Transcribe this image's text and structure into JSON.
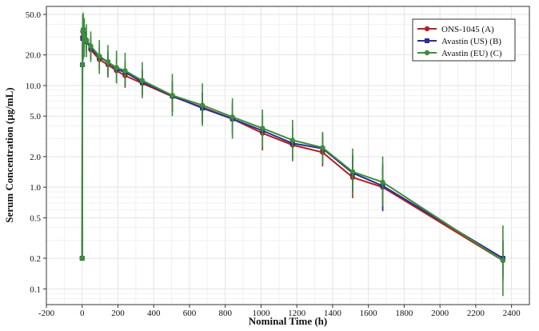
{
  "chart_data": {
    "type": "line",
    "title": "",
    "xlabel": "Nominal Time (h)",
    "ylabel": "Serum Concentration (µg/mL)",
    "x_scale": "linear",
    "y_scale": "log",
    "xlim": [
      -200,
      2500
    ],
    "ylim": [
      0.07,
      60
    ],
    "grid": true,
    "legend_position": "top-right",
    "x_ticks": [
      -200,
      0,
      200,
      400,
      600,
      800,
      1000,
      1200,
      1400,
      1600,
      1800,
      2000,
      2200,
      2400
    ],
    "x_tick_labels": [
      "-200",
      "0",
      "200",
      "400",
      "600",
      "800",
      "1000",
      "1200",
      "1400",
      "1600",
      "1800",
      "2000",
      "2200",
      "2400"
    ],
    "y_ticks": [
      0.1,
      0.2,
      0.5,
      1.0,
      2.0,
      5.0,
      10.0,
      20.0,
      50.0
    ],
    "y_tick_labels": [
      "0.1",
      "0.2",
      "0.5",
      "1.0",
      "2.0",
      "5.0",
      "10.0",
      "20.0",
      "50.0"
    ],
    "series": [
      {
        "name": "ONS-1045 (A)",
        "color": "#b22222",
        "marker": "circle",
        "points": [
          {
            "x": 0,
            "y": 0.2,
            "lo": 0.2,
            "hi": 0.2
          },
          {
            "x": 1.5,
            "y": 16,
            "lo": 16,
            "hi": 16
          },
          {
            "x": 3,
            "y": 30,
            "lo": 25,
            "hi": 36
          },
          {
            "x": 6,
            "y": 33,
            "lo": 27,
            "hi": 40
          },
          {
            "x": 12,
            "y": 30,
            "lo": 24,
            "hi": 37
          },
          {
            "x": 24,
            "y": 28,
            "lo": 22,
            "hi": 34
          },
          {
            "x": 48,
            "y": 22.5,
            "lo": 18,
            "hi": 28
          },
          {
            "x": 96,
            "y": 18,
            "lo": 14,
            "hi": 23
          },
          {
            "x": 144,
            "y": 16,
            "lo": 12,
            "hi": 21
          },
          {
            "x": 192,
            "y": 14,
            "lo": 10.5,
            "hi": 18
          },
          {
            "x": 240,
            "y": 12.5,
            "lo": 9.5,
            "hi": 16
          },
          {
            "x": 336,
            "y": 10.5,
            "lo": 8,
            "hi": 14
          },
          {
            "x": 504,
            "y": 7.8,
            "lo": 5.5,
            "hi": 10.5
          },
          {
            "x": 672,
            "y": 6.1,
            "lo": 4.3,
            "hi": 8.5
          },
          {
            "x": 840,
            "y": 4.7,
            "lo": 3.3,
            "hi": 6.5
          },
          {
            "x": 1008,
            "y": 3.4,
            "lo": 2.3,
            "hi": 5
          },
          {
            "x": 1176,
            "y": 2.6,
            "lo": 1.8,
            "hi": 3.8
          },
          {
            "x": 1344,
            "y": 2.2,
            "lo": 1.6,
            "hi": 3.2
          },
          {
            "x": 1512,
            "y": 1.25,
            "lo": 0.78,
            "hi": 2
          },
          {
            "x": 1680,
            "y": 1.0,
            "lo": 0.6,
            "hi": 1.6
          },
          {
            "x": 2352,
            "y": 0.19,
            "lo": 0.12,
            "hi": 0.3
          }
        ]
      },
      {
        "name": "Avastin (US) (B)",
        "color": "#2b2f8f",
        "marker": "square",
        "points": [
          {
            "x": 0,
            "y": 0.2,
            "lo": 0.2,
            "hi": 0.2
          },
          {
            "x": 1.5,
            "y": 16,
            "lo": 16,
            "hi": 16
          },
          {
            "x": 3,
            "y": 29,
            "lo": 24,
            "hi": 35
          },
          {
            "x": 6,
            "y": 35,
            "lo": 28,
            "hi": 43
          },
          {
            "x": 12,
            "y": 31,
            "lo": 25,
            "hi": 38
          },
          {
            "x": 24,
            "y": 27,
            "lo": 21,
            "hi": 33
          },
          {
            "x": 48,
            "y": 23.5,
            "lo": 18,
            "hi": 30
          },
          {
            "x": 96,
            "y": 19,
            "lo": 14.5,
            "hi": 25
          },
          {
            "x": 144,
            "y": 17,
            "lo": 13,
            "hi": 22
          },
          {
            "x": 192,
            "y": 14.5,
            "lo": 11,
            "hi": 19
          },
          {
            "x": 240,
            "y": 13.5,
            "lo": 10,
            "hi": 17.5
          },
          {
            "x": 336,
            "y": 10.8,
            "lo": 8,
            "hi": 14.5
          },
          {
            "x": 504,
            "y": 7.9,
            "lo": 5.6,
            "hi": 11
          },
          {
            "x": 672,
            "y": 6.0,
            "lo": 4.2,
            "hi": 8.5
          },
          {
            "x": 840,
            "y": 4.7,
            "lo": 3.3,
            "hi": 6.8
          },
          {
            "x": 1008,
            "y": 3.6,
            "lo": 2.5,
            "hi": 5.2
          },
          {
            "x": 1176,
            "y": 2.7,
            "lo": 1.9,
            "hi": 4
          },
          {
            "x": 1344,
            "y": 2.4,
            "lo": 1.7,
            "hi": 3.4
          },
          {
            "x": 1512,
            "y": 1.38,
            "lo": 0.9,
            "hi": 2.1
          },
          {
            "x": 1680,
            "y": 1.03,
            "lo": 0.58,
            "hi": 1.7
          },
          {
            "x": 2352,
            "y": 0.2,
            "lo": 0.13,
            "hi": 0.3
          }
        ]
      },
      {
        "name": "Avastin (EU) (C)",
        "color": "#3b8f3b",
        "marker": "circle",
        "points": [
          {
            "x": 0,
            "y": 0.2,
            "lo": 0.2,
            "hi": 0.2
          },
          {
            "x": 1.5,
            "y": 16,
            "lo": 0.2,
            "hi": 16
          },
          {
            "x": 3,
            "y": 34,
            "lo": 20,
            "hi": 50
          },
          {
            "x": 6,
            "y": 35,
            "lo": 18,
            "hi": 52
          },
          {
            "x": 12,
            "y": 31,
            "lo": 19,
            "hi": 46
          },
          {
            "x": 24,
            "y": 28,
            "lo": 19,
            "hi": 40
          },
          {
            "x": 48,
            "y": 24.5,
            "lo": 17,
            "hi": 34
          },
          {
            "x": 96,
            "y": 19.5,
            "lo": 13,
            "hi": 28
          },
          {
            "x": 144,
            "y": 17,
            "lo": 12,
            "hi": 25
          },
          {
            "x": 192,
            "y": 15,
            "lo": 10.5,
            "hi": 22
          },
          {
            "x": 240,
            "y": 14,
            "lo": 10,
            "hi": 21
          },
          {
            "x": 336,
            "y": 11.2,
            "lo": 7.5,
            "hi": 17
          },
          {
            "x": 504,
            "y": 8.0,
            "lo": 5,
            "hi": 13
          },
          {
            "x": 672,
            "y": 6.4,
            "lo": 4,
            "hi": 10.5
          },
          {
            "x": 840,
            "y": 4.9,
            "lo": 3,
            "hi": 7.5
          },
          {
            "x": 1008,
            "y": 3.8,
            "lo": 2.5,
            "hi": 5.8
          },
          {
            "x": 1176,
            "y": 2.9,
            "lo": 1.8,
            "hi": 4.6
          },
          {
            "x": 1344,
            "y": 2.45,
            "lo": 1.7,
            "hi": 3.5
          },
          {
            "x": 1512,
            "y": 1.42,
            "lo": 0.85,
            "hi": 2.4
          },
          {
            "x": 1680,
            "y": 1.12,
            "lo": 0.65,
            "hi": 2
          },
          {
            "x": 2352,
            "y": 0.19,
            "lo": 0.085,
            "hi": 0.42
          }
        ]
      }
    ]
  }
}
